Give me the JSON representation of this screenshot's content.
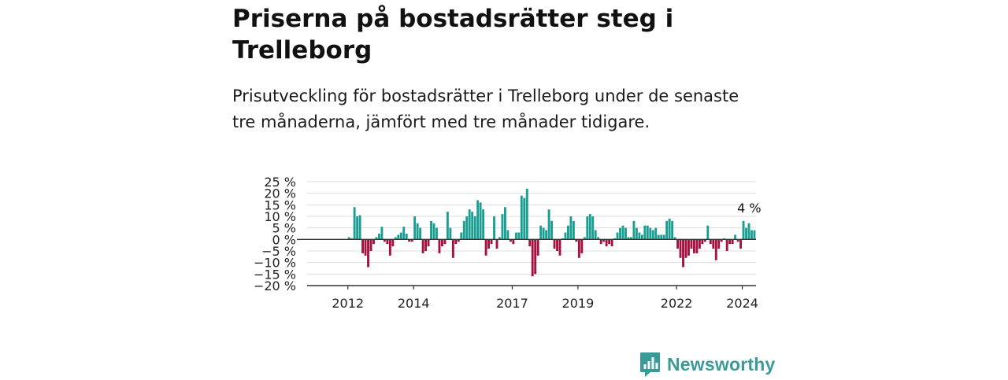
{
  "header": {
    "title": "Priserna på bostadsrätter steg i Trelleborg",
    "subtitle": "Prisutveckling för bostadsrätter i Trelleborg under de senaste tre månaderna, jämfört med tre månader tidigare."
  },
  "brand": {
    "name": "Newsworthy",
    "icon": "bar-chart-speech-bubble-icon"
  },
  "colors": {
    "positive": "#1a9e92",
    "negative": "#a3123f",
    "grid": "#dcdcdc",
    "axis": "#333333",
    "brand": "#3a9a98"
  },
  "chart_data": {
    "type": "bar",
    "title": "",
    "xlabel": "",
    "ylabel": "",
    "ylim": [
      -20,
      25
    ],
    "yticks": [
      -20,
      -15,
      -10,
      -5,
      0,
      5,
      10,
      15,
      20,
      25
    ],
    "ytick_labels": [
      "−20 %",
      "−15 %",
      "−10 %",
      "−5 %",
      "0 %",
      "5 %",
      "10 %",
      "15 %",
      "20 %",
      "25 %"
    ],
    "xtick_labels": [
      "2012",
      "2014",
      "2017",
      "2019",
      "2022",
      "2024"
    ],
    "xtick_dates": [
      "2012-01",
      "2014-01",
      "2017-01",
      "2019-01",
      "2022-01",
      "2024-01"
    ],
    "grid": true,
    "annotation": "4 %",
    "start": "2011-01",
    "values": [
      null,
      null,
      null,
      null,
      null,
      null,
      null,
      null,
      null,
      null,
      null,
      null,
      1,
      0.5,
      14,
      10,
      10.5,
      -6,
      -7,
      -12,
      -5,
      -2,
      1,
      2.5,
      5.5,
      -1,
      -2,
      -7,
      -3,
      1,
      2,
      3,
      5.5,
      2.5,
      -1,
      -1,
      10,
      7,
      5,
      -6,
      -5,
      -3,
      8,
      7,
      5,
      -6,
      -3,
      -2,
      12,
      5,
      -8,
      -2,
      -1,
      3,
      8,
      10,
      13,
      12,
      10,
      17,
      16,
      13,
      -7,
      -4,
      -2,
      10,
      -4,
      1,
      11,
      14,
      4,
      -1,
      -2,
      3,
      3,
      19,
      18,
      22,
      -3,
      -16,
      -15,
      -7,
      6,
      5,
      4,
      13,
      8,
      -4,
      -5,
      -7,
      0.5,
      3,
      6,
      10,
      8,
      -1,
      -8,
      -6,
      1,
      10,
      11,
      10,
      4,
      1,
      -2,
      -1,
      -3,
      -2,
      -3,
      0.5,
      3,
      5,
      6,
      5,
      1,
      1,
      8,
      5,
      3,
      2,
      6,
      6,
      5,
      4,
      5,
      2,
      2,
      2,
      8,
      9,
      8,
      1,
      -4,
      -8,
      -12,
      -8,
      -7,
      -4,
      -6,
      -6,
      -4,
      -2,
      -1,
      6,
      -2,
      -4,
      -9,
      -4,
      -1,
      0.5,
      -5,
      -2,
      -2,
      2,
      -1,
      -4,
      8,
      5,
      7,
      4,
      4
    ]
  }
}
